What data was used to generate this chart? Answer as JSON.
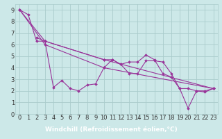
{
  "title": "",
  "xlabel": "Windchill (Refroidissement éolien,°C)",
  "ylabel": "",
  "bg_color": "#cce8e8",
  "line_color": "#993399",
  "grid_color": "#aacccc",
  "axis_bg": "#cce8e8",
  "xlim": [
    -0.5,
    23.5
  ],
  "ylim": [
    0,
    9.5
  ],
  "xticks": [
    0,
    1,
    2,
    3,
    4,
    5,
    6,
    7,
    8,
    9,
    10,
    11,
    12,
    13,
    14,
    15,
    16,
    17,
    18,
    19,
    20,
    21,
    22,
    23
  ],
  "yticks": [
    0,
    1,
    2,
    3,
    4,
    5,
    6,
    7,
    8,
    9
  ],
  "lines": [
    {
      "x": [
        0,
        1,
        2,
        3,
        4,
        5,
        6,
        7,
        8,
        9,
        10,
        11,
        12,
        13,
        14,
        15,
        16,
        17,
        18,
        19,
        20,
        21,
        22,
        23
      ],
      "y": [
        9,
        8.6,
        6.3,
        6.3,
        2.3,
        2.9,
        2.2,
        2.0,
        2.5,
        2.6,
        4.0,
        4.7,
        4.3,
        3.5,
        3.5,
        4.6,
        4.6,
        4.5,
        3.5,
        2.2,
        0.5,
        2.0,
        2.0,
        2.2
      ]
    },
    {
      "x": [
        2,
        3,
        10,
        11,
        12,
        13,
        14,
        15,
        16,
        17,
        18,
        19,
        20,
        21,
        22,
        23
      ],
      "y": [
        6.6,
        6.3,
        4.7,
        4.7,
        4.3,
        4.5,
        4.5,
        5.1,
        4.7,
        3.5,
        3.2,
        2.2,
        2.2,
        2.0,
        1.9,
        2.2
      ]
    },
    {
      "x": [
        0,
        3,
        10,
        23
      ],
      "y": [
        9,
        6.3,
        4.7,
        2.2
      ]
    },
    {
      "x": [
        0,
        3,
        10,
        23
      ],
      "y": [
        9,
        6.0,
        4.0,
        2.2
      ]
    }
  ],
  "fontsize_xlabel": 6.5,
  "fontsize_ticks": 6
}
